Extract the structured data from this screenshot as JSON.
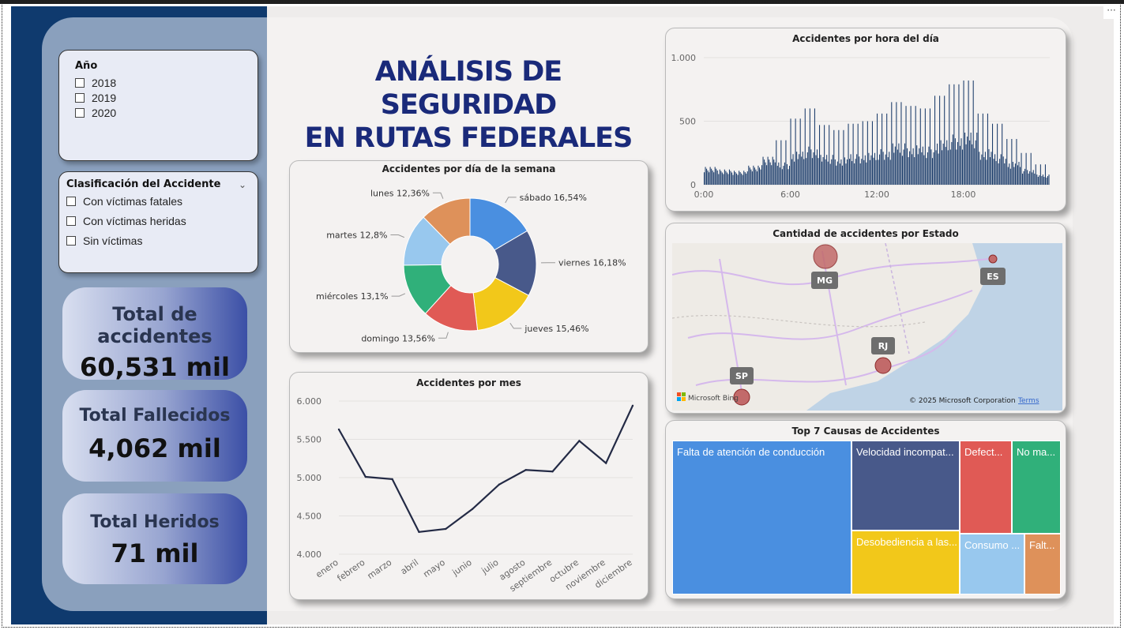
{
  "header": {
    "more_icon": "ellipsis-icon",
    "more_label": "···"
  },
  "title": {
    "line1": "ANÁLISIS DE SEGURIDAD",
    "line2": "EN RUTAS FEDERALES"
  },
  "year_slicer": {
    "title": "Año",
    "options": [
      "2018",
      "2019",
      "2020"
    ]
  },
  "class_slicer": {
    "title": "Clasificación del Accidente",
    "options": [
      "Con víctimas fatales",
      "Con víctimas heridas",
      "Sin víctimas"
    ]
  },
  "kpis": [
    {
      "label": "Total de accidentes",
      "value": "60,531 mil"
    },
    {
      "label": "Total Fallecidos",
      "value": "4,062 mil"
    },
    {
      "label": "Total Heridos",
      "value": "71 mil"
    }
  ],
  "colors": {
    "dark_navy": "#0f3a6e",
    "title_blue": "#1a2a7a",
    "bar_navy": "#1c3d6b",
    "line": "#232a45"
  },
  "hour_chart": {
    "title": "Accidentes por hora del día",
    "type": "bar",
    "y_ticks": [
      "1.000",
      "500",
      "0"
    ],
    "x_ticks": [
      "0:00",
      "6:00",
      "12:00",
      "18:00"
    ],
    "ylim": [
      0,
      1000
    ],
    "hourly_peak": [
      140,
      120,
      110,
      150,
      220,
      350,
      520,
      600,
      470,
      430,
      480,
      500,
      560,
      650,
      620,
      600,
      700,
      790,
      820,
      560,
      480,
      360,
      250,
      160
    ]
  },
  "weekday_chart": {
    "title": "Accidentes por día de la semana",
    "type": "pie",
    "slices": [
      {
        "label": "sábado 16,54%",
        "value": 16.54,
        "color": "#4a8fe0"
      },
      {
        "label": "viernes 16,18%",
        "value": 16.18,
        "color": "#48598a"
      },
      {
        "label": "jueves 15,46%",
        "value": 15.46,
        "color": "#f2c81a"
      },
      {
        "label": "domingo 13,56%",
        "value": 13.56,
        "color": "#e05a55"
      },
      {
        "label": "miércoles 13,1%",
        "value": 13.1,
        "color": "#30b07a"
      },
      {
        "label": "martes 12,8%",
        "value": 12.8,
        "color": "#98c8ee"
      },
      {
        "label": "lunes 12,36%",
        "value": 12.36,
        "color": "#de915a"
      }
    ]
  },
  "month_chart": {
    "title": "Accidentes por mes",
    "type": "line",
    "categories": [
      "enero",
      "febrero",
      "marzo",
      "abril",
      "mayo",
      "junio",
      "julio",
      "agosto",
      "septiembre",
      "octubre",
      "noviembre",
      "diciembre"
    ],
    "values": [
      5630,
      5010,
      4980,
      4290,
      4330,
      4590,
      4910,
      5100,
      5080,
      5480,
      5190,
      5940
    ],
    "y_ticks": [
      "6.000",
      "5.500",
      "5.000",
      "4.500",
      "4.000"
    ],
    "ylim": [
      4000,
      6000
    ]
  },
  "map_card": {
    "title": "Cantidad de accidentes por Estado",
    "states": [
      "MG",
      "ES",
      "RJ",
      "SP"
    ],
    "logo": "Microsoft Bing",
    "copyright": "© 2025 Microsoft Corporation",
    "terms": "Terms"
  },
  "causes_chart": {
    "title": "Top 7 Causas de Accidentes",
    "type": "treemap",
    "items": [
      {
        "label": "Falta de atención de conducción",
        "color": "#4a8fe0"
      },
      {
        "label": "Velocidad incompat...",
        "color": "#48598a"
      },
      {
        "label": "Desobediencia a las...",
        "color": "#f2c81a"
      },
      {
        "label": "Defect...",
        "color": "#e05a55"
      },
      {
        "label": "No ma...",
        "color": "#30b07a"
      },
      {
        "label": "Consumo ...",
        "color": "#98c8ee"
      },
      {
        "label": "Falt...",
        "color": "#de915a"
      }
    ]
  },
  "chart_data": [
    {
      "type": "bar",
      "title": "Accidentes por hora del día",
      "x_ticks": [
        "0:00",
        "6:00",
        "12:00",
        "18:00"
      ],
      "ylim": [
        0,
        1000
      ],
      "series": [
        {
          "values": [
            140,
            120,
            110,
            150,
            220,
            350,
            520,
            600,
            470,
            430,
            480,
            500,
            560,
            650,
            620,
            600,
            700,
            790,
            820,
            560,
            480,
            360,
            250,
            160
          ]
        }
      ]
    },
    {
      "type": "pie",
      "title": "Accidentes por día de la semana",
      "categories": [
        "sábado",
        "viernes",
        "jueves",
        "domingo",
        "miércoles",
        "martes",
        "lunes"
      ],
      "values": [
        16.54,
        16.18,
        15.46,
        13.56,
        13.1,
        12.8,
        12.36
      ]
    },
    {
      "type": "line",
      "title": "Accidentes por mes",
      "categories": [
        "enero",
        "febrero",
        "marzo",
        "abril",
        "mayo",
        "junio",
        "julio",
        "agosto",
        "septiembre",
        "octubre",
        "noviembre",
        "diciembre"
      ],
      "values": [
        5630,
        5010,
        4980,
        4290,
        4330,
        4590,
        4910,
        5100,
        5080,
        5480,
        5190,
        5940
      ],
      "ylim": [
        4000,
        6000
      ]
    }
  ]
}
